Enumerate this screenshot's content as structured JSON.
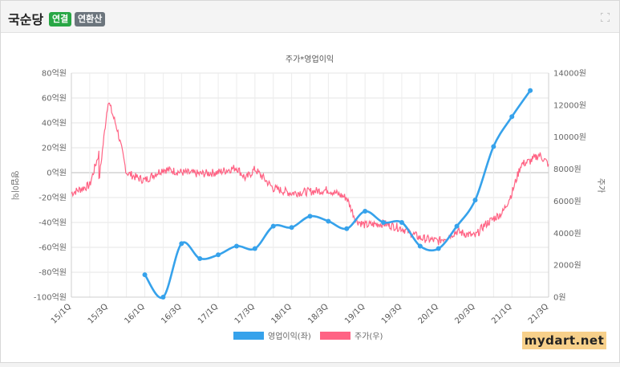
{
  "header": {
    "company": "국순당",
    "badge_consolidated": "연결",
    "badge_annualized": "연환산"
  },
  "watermark": "mydart.net",
  "colors": {
    "profit_line": "#36a2eb",
    "price_line": "#ff6384",
    "badge_green": "#28a745",
    "badge_gray": "#6c757d"
  },
  "chart_data": {
    "type": "line",
    "title": "주가*영업이익",
    "ylabel_left": "영업이익",
    "ylabel_right": "주가",
    "ylim_left": [
      -100,
      80
    ],
    "ylim_right": [
      0,
      14000
    ],
    "yticks_left": [
      "80억원",
      "60억원",
      "40억원",
      "20억원",
      "0억원",
      "-20억원",
      "-40억원",
      "-60억원",
      "-80억원",
      "-100억원"
    ],
    "yticks_right": [
      "14000원",
      "12000원",
      "10000원",
      "8000원",
      "6000원",
      "4000원",
      "2000원",
      "0원"
    ],
    "x_tick_labels": [
      "15/1Q",
      "15/3Q",
      "16/1Q",
      "16/3Q",
      "17/1Q",
      "17/3Q",
      "18/1Q",
      "18/3Q",
      "19/1Q",
      "19/3Q",
      "20/1Q",
      "20/3Q",
      "21/1Q",
      "21/3Q"
    ],
    "x_range": [
      "15/1Q",
      "21/3Q"
    ],
    "legend_position": "bottom",
    "grid": true,
    "series": [
      {
        "name": "영업이익(좌)",
        "axis": "left",
        "x": [
          "16/1Q",
          "16/2Q",
          "16/3Q",
          "16/4Q",
          "17/1Q",
          "17/2Q",
          "17/3Q",
          "17/4Q",
          "18/1Q",
          "18/2Q",
          "18/3Q",
          "18/4Q",
          "19/1Q",
          "19/2Q",
          "19/3Q",
          "19/4Q",
          "20/1Q",
          "20/2Q",
          "20/3Q",
          "20/4Q",
          "21/1Q",
          "21/2Q"
        ],
        "values": [
          -82,
          -100,
          -57,
          -69,
          -66,
          -59,
          -61,
          -43,
          -44,
          -35,
          -39,
          -45,
          -31,
          -40,
          -40,
          -59,
          -61,
          -43,
          -22,
          21,
          45,
          66
        ]
      },
      {
        "name": "주가(우)",
        "axis": "right",
        "points": [
          [
            "15/1Q",
            6500
          ],
          [
            "15/2Q",
            7000
          ],
          [
            "15/2Q+",
            9000
          ],
          [
            "15/3Q-",
            7200
          ],
          [
            "15/3Q",
            12300
          ],
          [
            "15/3Q+",
            10500
          ],
          [
            "15/4Q",
            7800
          ],
          [
            "15/4Q+",
            7500
          ],
          [
            "16/1Q",
            7300
          ],
          [
            "16/2Q",
            8000
          ],
          [
            "16/3Q",
            7800
          ],
          [
            "16/4Q",
            7700
          ],
          [
            "17/1Q",
            7800
          ],
          [
            "17/2Q",
            8100
          ],
          [
            "17/2Q+",
            7400
          ],
          [
            "17/3Q",
            8000
          ],
          [
            "17/4Q",
            6800
          ],
          [
            "18/1Q",
            6500
          ],
          [
            "18/2Q",
            6600
          ],
          [
            "18/3Q",
            6700
          ],
          [
            "18/4Q",
            6200
          ],
          [
            "19/1Q-",
            4800
          ],
          [
            "19/1Q",
            4500
          ],
          [
            "19/2Q",
            4600
          ],
          [
            "19/3Q",
            4300
          ],
          [
            "19/4Q",
            3700
          ],
          [
            "20/1Q",
            3500
          ],
          [
            "20/2Q",
            4100
          ],
          [
            "20/3Q",
            3800
          ],
          [
            "20/3Q+",
            4500
          ],
          [
            "21/1Q-",
            5300
          ],
          [
            "21/1Q",
            6500
          ],
          [
            "21/2Q-",
            8300
          ],
          [
            "21/2Q",
            8500
          ],
          [
            "21/3Q-",
            8900
          ],
          [
            "21/3Q",
            8300
          ]
        ]
      }
    ]
  }
}
